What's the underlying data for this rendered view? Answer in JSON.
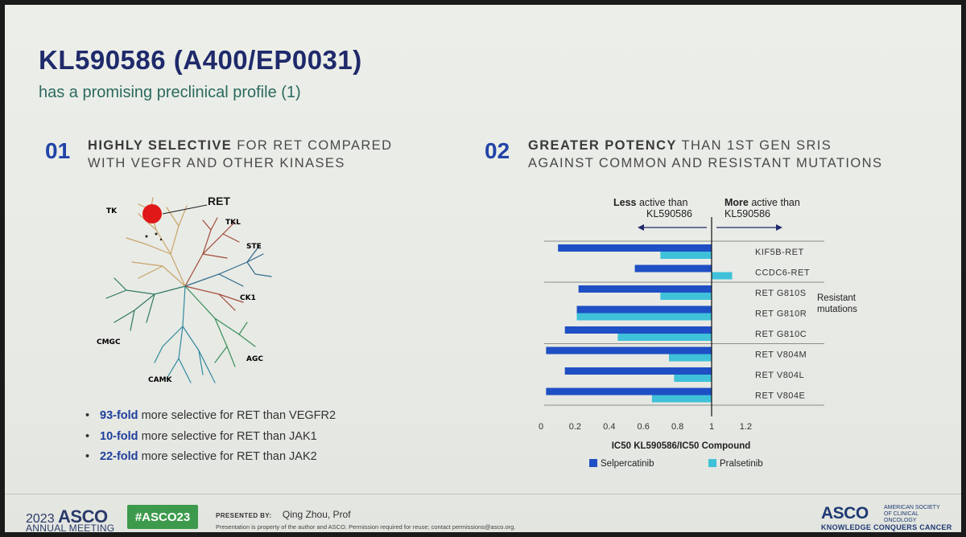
{
  "slide": {
    "title": "KL590586 (A400/EP0031)",
    "subtitle": "has a promising preclinical profile (1)"
  },
  "section1": {
    "number": "01",
    "heading_bold": "HIGHLY SELECTIVE",
    "heading_rest": "FOR RET COMPARED",
    "heading_line2": "WITH VEGFR AND OTHER KINASES",
    "ret_label": "RET",
    "kinase_groups": [
      "TK",
      "TKL",
      "STE",
      "CK1",
      "CMGC",
      "AGC",
      "CAMK"
    ],
    "group_colors": {
      "TK": "#c9a46a",
      "TKL": "#a24a3a",
      "STE": "#2e6a8a",
      "CK1": "#a24a3a",
      "CMGC": "#2f7a5f",
      "AGC": "#3a8f5a",
      "CAMK": "#2e8aa0"
    },
    "bullets": [
      {
        "bold": "93-fold",
        "text": "more selective for RET than VEGFR2"
      },
      {
        "bold": "10-fold",
        "text": "more selective for RET than JAK1"
      },
      {
        "bold": "22-fold",
        "text": "more selective for RET than JAK2"
      }
    ]
  },
  "section2": {
    "number": "02",
    "heading_bold": "GREATER POTENCY",
    "heading_rest": "THAN 1ST GEN SRIs",
    "heading_line2": "AGAINST COMMON AND RESISTANT MUTATIONS"
  },
  "chart_data": {
    "type": "bar",
    "orientation": "horizontal",
    "categories": [
      "KIF5B-RET",
      "CCDC6-RET",
      "RET G810S",
      "RET G810R",
      "RET G810C",
      "RET V804M",
      "RET V804L",
      "RET V804E"
    ],
    "series": [
      {
        "name": "Selpercatinib",
        "color": "#1f4fc4",
        "values": [
          0.1,
          0.55,
          0.22,
          0.21,
          0.14,
          0.03,
          0.14,
          0.03
        ]
      },
      {
        "name": "Pralsetinib",
        "color": "#3fc1d9",
        "values": [
          0.7,
          1.12,
          0.7,
          0.21,
          0.45,
          0.75,
          0.78,
          0.65
        ]
      }
    ],
    "xlabel": "IC50 KL590586/IC50 Compound",
    "xticks": [
      "0",
      "0.2",
      "0.4",
      "0.6",
      "0.8",
      "1",
      "1.2"
    ],
    "xlim": [
      0,
      1.3
    ],
    "reference_line": 1,
    "left_annotation": {
      "bold": "Less",
      "rest": "active than",
      "line2": "KL590586"
    },
    "right_annotation": {
      "bold": "More",
      "rest": "active than",
      "line2": "KL590586"
    },
    "group_label": [
      "Resistant",
      "mutations"
    ],
    "legend_position": "bottom"
  },
  "footer": {
    "year": "2023",
    "asco": "ASCO",
    "meeting": "ANNUAL MEETING",
    "hashtag": "#ASCO23",
    "presented_by": "PRESENTED BY:",
    "presenter": "Qing Zhou, Prof",
    "property": "Presentation is property of the author and ASCO. Permission required for reuse; contact permissions@asco.org.",
    "asco_right": "ASCO",
    "society": "AMERICAN SOCIETY OF CLINICAL ONCOLOGY",
    "tagline": "KNOWLEDGE CONQUERS CANCER"
  }
}
